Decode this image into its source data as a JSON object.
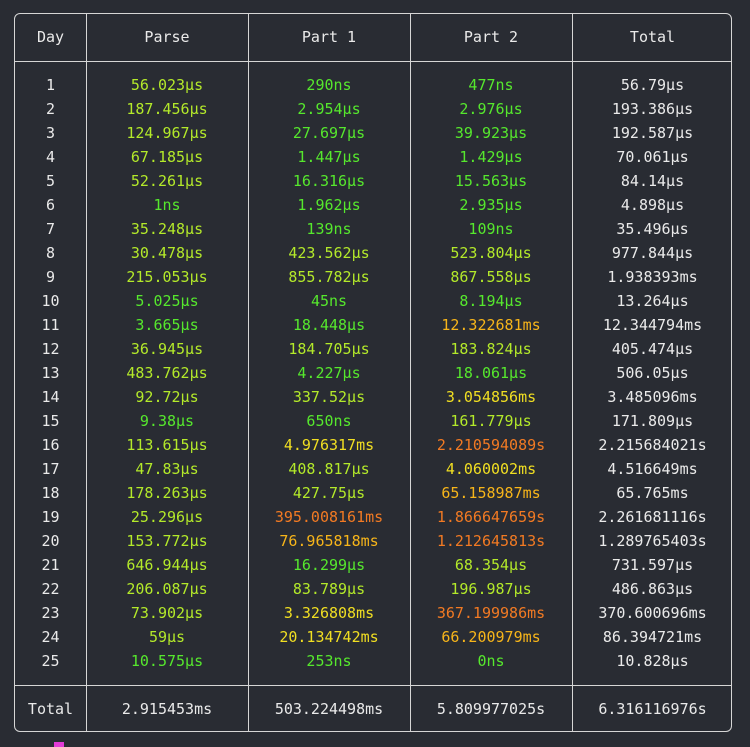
{
  "headers": [
    "Day",
    "Parse",
    "Part 1",
    "Part 2",
    "Total"
  ],
  "rows": [
    {
      "day": "1",
      "parse": {
        "v": "56.023µs",
        "c": "lime"
      },
      "p1": {
        "v": "290ns",
        "c": "green"
      },
      "p2": {
        "v": "477ns",
        "c": "green"
      },
      "total": "56.79µs"
    },
    {
      "day": "2",
      "parse": {
        "v": "187.456µs",
        "c": "lime"
      },
      "p1": {
        "v": "2.954µs",
        "c": "green"
      },
      "p2": {
        "v": "2.976µs",
        "c": "green"
      },
      "total": "193.386µs"
    },
    {
      "day": "3",
      "parse": {
        "v": "124.967µs",
        "c": "lime"
      },
      "p1": {
        "v": "27.697µs",
        "c": "green"
      },
      "p2": {
        "v": "39.923µs",
        "c": "green"
      },
      "total": "192.587µs"
    },
    {
      "day": "4",
      "parse": {
        "v": "67.185µs",
        "c": "lime"
      },
      "p1": {
        "v": "1.447µs",
        "c": "green"
      },
      "p2": {
        "v": "1.429µs",
        "c": "green"
      },
      "total": "70.061µs"
    },
    {
      "day": "5",
      "parse": {
        "v": "52.261µs",
        "c": "lime"
      },
      "p1": {
        "v": "16.316µs",
        "c": "green"
      },
      "p2": {
        "v": "15.563µs",
        "c": "green"
      },
      "total": "84.14µs"
    },
    {
      "day": "6",
      "parse": {
        "v": "1ns",
        "c": "green"
      },
      "p1": {
        "v": "1.962µs",
        "c": "green"
      },
      "p2": {
        "v": "2.935µs",
        "c": "green"
      },
      "total": "4.898µs"
    },
    {
      "day": "7",
      "parse": {
        "v": "35.248µs",
        "c": "lime"
      },
      "p1": {
        "v": "139ns",
        "c": "green"
      },
      "p2": {
        "v": "109ns",
        "c": "green"
      },
      "total": "35.496µs"
    },
    {
      "day": "8",
      "parse": {
        "v": "30.478µs",
        "c": "lime"
      },
      "p1": {
        "v": "423.562µs",
        "c": "lime"
      },
      "p2": {
        "v": "523.804µs",
        "c": "lime"
      },
      "total": "977.844µs"
    },
    {
      "day": "9",
      "parse": {
        "v": "215.053µs",
        "c": "lime"
      },
      "p1": {
        "v": "855.782µs",
        "c": "lime"
      },
      "p2": {
        "v": "867.558µs",
        "c": "lime"
      },
      "total": "1.938393ms"
    },
    {
      "day": "10",
      "parse": {
        "v": "5.025µs",
        "c": "green"
      },
      "p1": {
        "v": "45ns",
        "c": "green"
      },
      "p2": {
        "v": "8.194µs",
        "c": "green"
      },
      "total": "13.264µs"
    },
    {
      "day": "11",
      "parse": {
        "v": "3.665µs",
        "c": "green"
      },
      "p1": {
        "v": "18.448µs",
        "c": "green"
      },
      "p2": {
        "v": "12.322681ms",
        "c": "amber"
      },
      "total": "12.344794ms"
    },
    {
      "day": "12",
      "parse": {
        "v": "36.945µs",
        "c": "lime"
      },
      "p1": {
        "v": "184.705µs",
        "c": "lime"
      },
      "p2": {
        "v": "183.824µs",
        "c": "lime"
      },
      "total": "405.474µs"
    },
    {
      "day": "13",
      "parse": {
        "v": "483.762µs",
        "c": "lime"
      },
      "p1": {
        "v": "4.227µs",
        "c": "green"
      },
      "p2": {
        "v": "18.061µs",
        "c": "green"
      },
      "total": "506.05µs"
    },
    {
      "day": "14",
      "parse": {
        "v": "92.72µs",
        "c": "lime"
      },
      "p1": {
        "v": "337.52µs",
        "c": "lime"
      },
      "p2": {
        "v": "3.054856ms",
        "c": "yellow"
      },
      "total": "3.485096ms"
    },
    {
      "day": "15",
      "parse": {
        "v": "9.38µs",
        "c": "green"
      },
      "p1": {
        "v": "650ns",
        "c": "green"
      },
      "p2": {
        "v": "161.779µs",
        "c": "lime"
      },
      "total": "171.809µs"
    },
    {
      "day": "16",
      "parse": {
        "v": "113.615µs",
        "c": "lime"
      },
      "p1": {
        "v": "4.976317ms",
        "c": "yellow"
      },
      "p2": {
        "v": "2.210594089s",
        "c": "orange"
      },
      "total": "2.215684021s"
    },
    {
      "day": "17",
      "parse": {
        "v": "47.83µs",
        "c": "lime"
      },
      "p1": {
        "v": "408.817µs",
        "c": "lime"
      },
      "p2": {
        "v": "4.060002ms",
        "c": "yellow"
      },
      "total": "4.516649ms"
    },
    {
      "day": "18",
      "parse": {
        "v": "178.263µs",
        "c": "lime"
      },
      "p1": {
        "v": "427.75µs",
        "c": "lime"
      },
      "p2": {
        "v": "65.158987ms",
        "c": "amber"
      },
      "total": "65.765ms"
    },
    {
      "day": "19",
      "parse": {
        "v": "25.296µs",
        "c": "lime"
      },
      "p1": {
        "v": "395.008161ms",
        "c": "orange"
      },
      "p2": {
        "v": "1.866647659s",
        "c": "orange"
      },
      "total": "2.261681116s"
    },
    {
      "day": "20",
      "parse": {
        "v": "153.772µs",
        "c": "lime"
      },
      "p1": {
        "v": "76.965818ms",
        "c": "amber"
      },
      "p2": {
        "v": "1.212645813s",
        "c": "orange"
      },
      "total": "1.289765403s"
    },
    {
      "day": "21",
      "parse": {
        "v": "646.944µs",
        "c": "lime"
      },
      "p1": {
        "v": "16.299µs",
        "c": "green"
      },
      "p2": {
        "v": "68.354µs",
        "c": "lime"
      },
      "total": "731.597µs"
    },
    {
      "day": "22",
      "parse": {
        "v": "206.087µs",
        "c": "lime"
      },
      "p1": {
        "v": "83.789µs",
        "c": "lime"
      },
      "p2": {
        "v": "196.987µs",
        "c": "lime"
      },
      "total": "486.863µs"
    },
    {
      "day": "23",
      "parse": {
        "v": "73.902µs",
        "c": "lime"
      },
      "p1": {
        "v": "3.326808ms",
        "c": "yellow"
      },
      "p2": {
        "v": "367.199986ms",
        "c": "orange"
      },
      "total": "370.600696ms"
    },
    {
      "day": "24",
      "parse": {
        "v": "59µs",
        "c": "lime"
      },
      "p1": {
        "v": "20.134742ms",
        "c": "yellow"
      },
      "p2": {
        "v": "66.200979ms",
        "c": "amber"
      },
      "total": "86.394721ms"
    },
    {
      "day": "25",
      "parse": {
        "v": "10.575µs",
        "c": "green"
      },
      "p1": {
        "v": "253ns",
        "c": "green"
      },
      "p2": {
        "v": "0ns",
        "c": "green"
      },
      "total": "10.828µs"
    }
  ],
  "footer": {
    "label": "Total",
    "parse": "2.915453ms",
    "p1": "503.224498ms",
    "p2": "5.809977025s",
    "total": "6.316116976s"
  },
  "colors": {
    "background": "#292c33",
    "border": "#d6d6d6",
    "green": "#56e82d",
    "lime": "#b4ea2a",
    "yellow": "#f1df22",
    "amber": "#f7b51a",
    "orange": "#f27a23",
    "cursor": "#e23bd6"
  }
}
